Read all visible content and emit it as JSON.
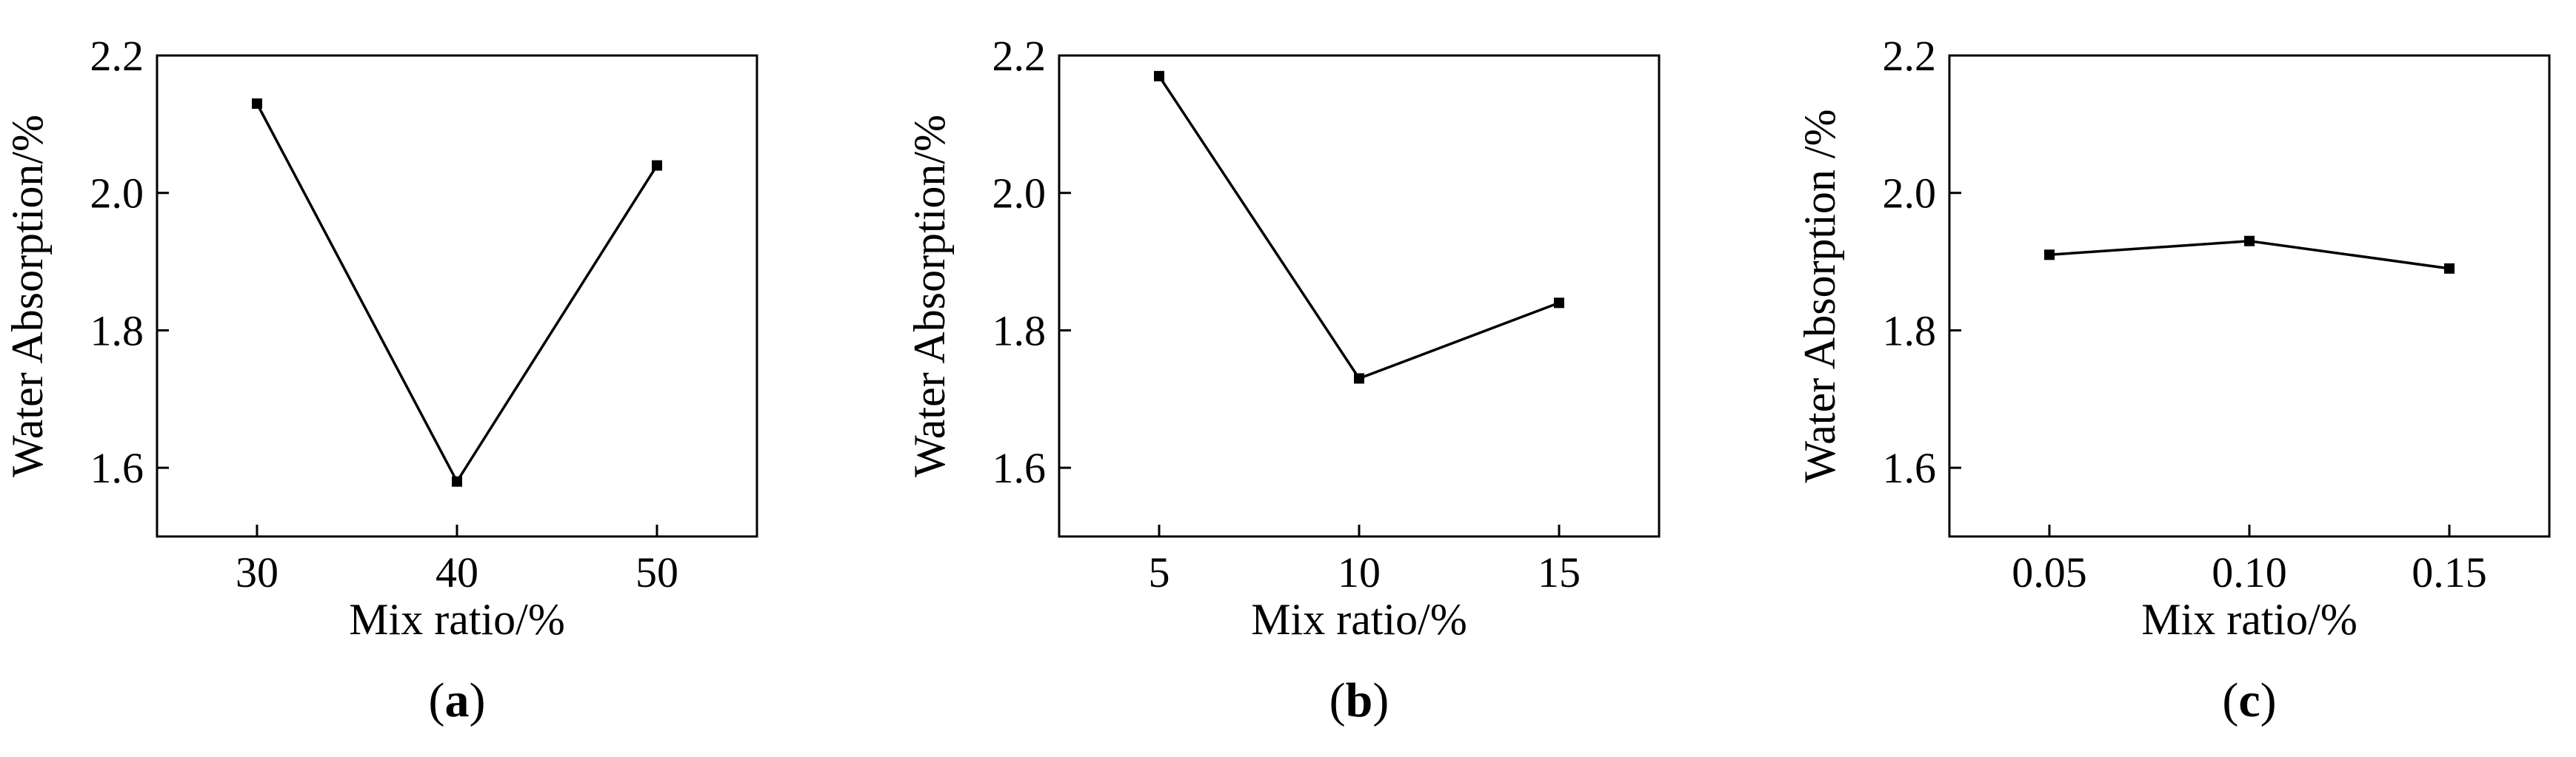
{
  "colors": {
    "line": "#000000",
    "marker": "#000000",
    "background": "#ffffff"
  },
  "chart_data": [
    {
      "type": "line",
      "panel_label": "a",
      "xlabel": "Mix ratio/%",
      "ylabel": "Water Absorption/%",
      "x": [
        30,
        40,
        50
      ],
      "x_tick_labels": [
        "30",
        "40",
        "50"
      ],
      "series": [
        {
          "values": [
            2.13,
            1.58,
            2.04
          ]
        }
      ],
      "xlim": [
        25,
        55
      ],
      "ylim": [
        1.5,
        2.2
      ],
      "y_ticks": [
        1.6,
        1.8,
        2.0,
        2.2
      ],
      "y_tick_labels": [
        "1.6",
        "1.8",
        "2.0",
        "2.2"
      ],
      "grid": false,
      "marker": "square"
    },
    {
      "type": "line",
      "panel_label": "b",
      "xlabel": "Mix ratio/%",
      "ylabel": "Water Absorption/%",
      "x": [
        5,
        10,
        15
      ],
      "x_tick_labels": [
        "5",
        "10",
        "15"
      ],
      "series": [
        {
          "values": [
            2.17,
            1.73,
            1.84
          ]
        }
      ],
      "xlim": [
        2.5,
        17.5
      ],
      "ylim": [
        1.5,
        2.2
      ],
      "y_ticks": [
        1.6,
        1.8,
        2.0,
        2.2
      ],
      "y_tick_labels": [
        "1.6",
        "1.8",
        "2.0",
        "2.2"
      ],
      "grid": false,
      "marker": "square"
    },
    {
      "type": "line",
      "panel_label": "c",
      "xlabel": "Mix ratio/%",
      "ylabel": "Water Absorption /%",
      "x": [
        0.05,
        0.1,
        0.15
      ],
      "x_tick_labels": [
        "0.05",
        "0.10",
        "0.15"
      ],
      "series": [
        {
          "values": [
            1.91,
            1.93,
            1.89
          ]
        }
      ],
      "xlim": [
        0.025,
        0.175
      ],
      "ylim": [
        1.5,
        2.2
      ],
      "y_ticks": [
        1.6,
        1.8,
        2.0,
        2.2
      ],
      "y_tick_labels": [
        "1.6",
        "1.8",
        "2.0",
        "2.2"
      ],
      "grid": false,
      "marker": "square"
    }
  ]
}
